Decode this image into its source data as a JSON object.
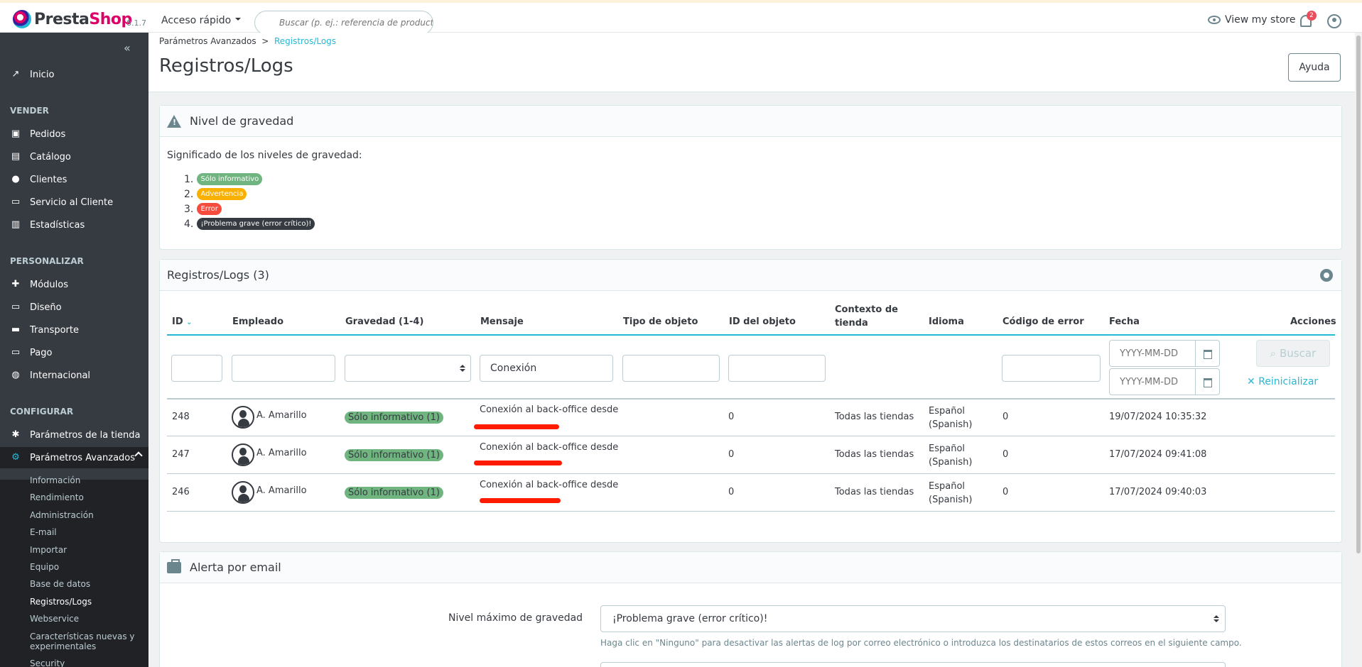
{
  "header": {
    "brand_a": "Presta",
    "brand_b": "Shop",
    "version": "8.1.7",
    "quick_access": "Acceso rápido",
    "search_placeholder": "Buscar (p. ej.: referencia de producto,",
    "view_store": "View my store",
    "notifications_count": "2"
  },
  "sidebar": {
    "collapse": "«",
    "home": "Inicio",
    "sections": [
      {
        "title": "VENDER",
        "items": [
          "Pedidos",
          "Catálogo",
          "Clientes",
          "Servicio al Cliente",
          "Estadísticas"
        ]
      },
      {
        "title": "PERSONALIZAR",
        "items": [
          "Módulos",
          "Diseño",
          "Transporte",
          "Pago",
          "Internacional"
        ]
      },
      {
        "title": "CONFIGURAR",
        "items": [
          "Parámetros de la tienda",
          "Parámetros Avanzados"
        ]
      }
    ],
    "sub_items": [
      "Información",
      "Rendimiento",
      "Administración",
      "E-mail",
      "Importar",
      "Equipo",
      "Base de datos",
      "Registros/Logs",
      "Webservice",
      "Características nuevas y experimentales",
      "Security"
    ]
  },
  "page": {
    "breadcrumb_parent": "Parámetros Avanzados",
    "breadcrumb_sep": ">",
    "breadcrumb_current": "Registros/Logs",
    "title": "Registros/Logs",
    "help": "Ayuda"
  },
  "severity": {
    "title": "Nivel de gravedad",
    "intro": "Significado de los niveles de gravedad:",
    "levels": [
      {
        "n": "1.",
        "label": "Sólo informativo"
      },
      {
        "n": "2.",
        "label": "Advertencia"
      },
      {
        "n": "3.",
        "label": "Error"
      },
      {
        "n": "4.",
        "label": "¡Problema grave (error crítico)!"
      }
    ]
  },
  "logs": {
    "title": "Registros/Logs (3)",
    "columns": {
      "id": "ID",
      "employee": "Empleado",
      "severity": "Gravedad (1-4)",
      "message": "Mensaje",
      "object_type": "Tipo de objeto",
      "object_id": "ID del objeto",
      "shop_context_1": "Contexto de",
      "shop_context_2": "tienda",
      "language": "Idioma",
      "error_code": "Código de error",
      "date": "Fecha",
      "actions": "Acciones"
    },
    "filters": {
      "message_value": "Conexión",
      "date_from_placeholder": "YYYY-MM-DD",
      "date_to_placeholder": "YYYY-MM-DD",
      "search": "Buscar",
      "reset": "Reinicializar"
    },
    "rows": [
      {
        "id": "248",
        "employee": "A. Amarillo",
        "severity": "Sólo informativo (1)",
        "message": "Conexión al back-office desde",
        "object_id": "0",
        "shop": "Todas las tiendas",
        "lang1": "Español",
        "lang2": "(Spanish)",
        "error_code": "0",
        "date": "19/07/2024 10:35:32"
      },
      {
        "id": "247",
        "employee": "A. Amarillo",
        "severity": "Sólo informativo (1)",
        "message": "Conexión al back-office desde",
        "object_id": "0",
        "shop": "Todas las tiendas",
        "lang1": "Español",
        "lang2": "(Spanish)",
        "error_code": "0",
        "date": "17/07/2024 09:41:08"
      },
      {
        "id": "246",
        "employee": "A. Amarillo",
        "severity": "Sólo informativo (1)",
        "message": "Conexión al back-office desde",
        "object_id": "0",
        "shop": "Todas las tiendas",
        "lang1": "Español",
        "lang2": "(Spanish)",
        "error_code": "0",
        "date": "17/07/2024 09:40:03"
      }
    ]
  },
  "email_alert": {
    "title": "Alerta por email",
    "max_label": "Nivel máximo de gravedad",
    "max_value": "¡Problema grave (error crítico)!",
    "hint": "Haga clic en \"Ninguno\" para desactivar las alertas de log por correo electrónico o introduzca los destinatarios de estos correos en el siguiente campo."
  }
}
